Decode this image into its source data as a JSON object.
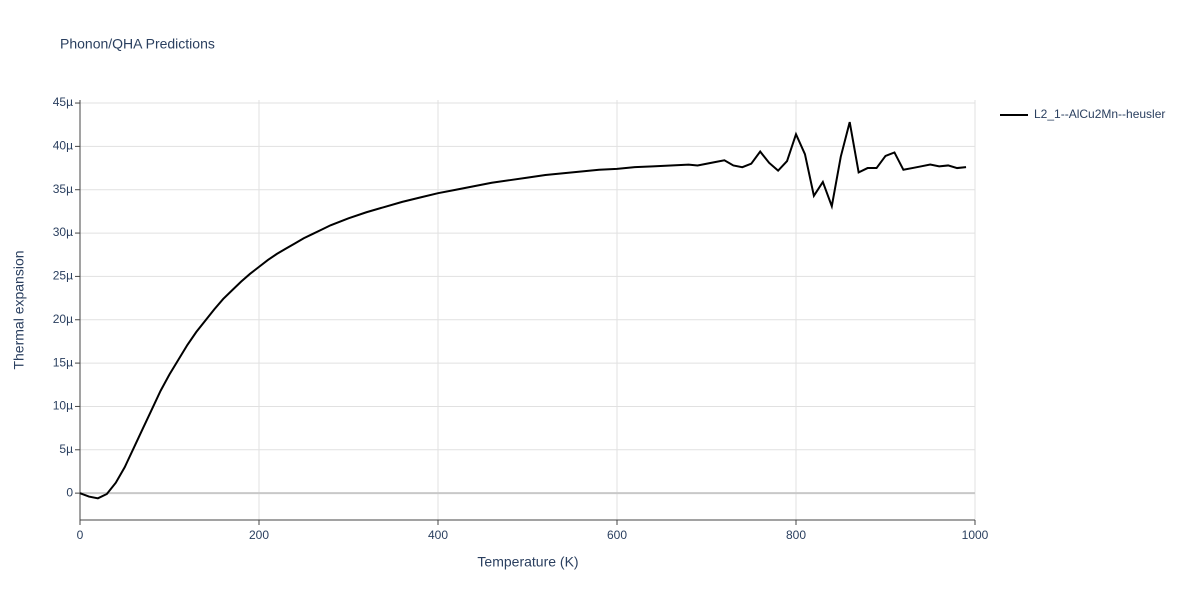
{
  "chart_data": {
    "type": "line",
    "title": "Phonon/QHA Predictions",
    "x_label": "Temperature (K)",
    "y_label": "Thermal expansion",
    "x": [
      0,
      10,
      20,
      30,
      40,
      50,
      60,
      70,
      80,
      90,
      100,
      110,
      120,
      130,
      140,
      150,
      160,
      170,
      180,
      190,
      200,
      210,
      220,
      230,
      240,
      250,
      260,
      270,
      280,
      290,
      300,
      320,
      340,
      360,
      380,
      400,
      420,
      440,
      460,
      480,
      500,
      520,
      540,
      560,
      580,
      600,
      620,
      640,
      660,
      680,
      690,
      700,
      710,
      720,
      730,
      740,
      750,
      760,
      770,
      780,
      790,
      800,
      810,
      820,
      830,
      840,
      850,
      860,
      870,
      880,
      890,
      900,
      910,
      920,
      930,
      940,
      950,
      960,
      970,
      980,
      990
    ],
    "series": [
      {
        "name": "L2_1--AlCu2Mn--heusler",
        "color": "#000000",
        "values": [
          0,
          -4e-07,
          -6e-07,
          -1e-07,
          1.2e-06,
          3e-06,
          5.2e-06,
          7.4e-06,
          9.6e-06,
          1.18e-05,
          1.37e-05,
          1.54e-05,
          1.71e-05,
          1.86e-05,
          1.99e-05,
          2.12e-05,
          2.24e-05,
          2.34e-05,
          2.44e-05,
          2.53e-05,
          2.61e-05,
          2.69e-05,
          2.76e-05,
          2.82e-05,
          2.88e-05,
          2.94e-05,
          2.99e-05,
          3.04e-05,
          3.09e-05,
          3.13e-05,
          3.17e-05,
          3.24e-05,
          3.3e-05,
          3.36e-05,
          3.41e-05,
          3.46e-05,
          3.5e-05,
          3.54e-05,
          3.58e-05,
          3.61e-05,
          3.64e-05,
          3.67e-05,
          3.69e-05,
          3.71e-05,
          3.73e-05,
          3.74e-05,
          3.76e-05,
          3.77e-05,
          3.78e-05,
          3.79e-05,
          3.78e-05,
          3.8e-05,
          3.82e-05,
          3.84e-05,
          3.78e-05,
          3.76e-05,
          3.8e-05,
          3.94e-05,
          3.81e-05,
          3.72e-05,
          3.83e-05,
          4.14e-05,
          3.91e-05,
          3.43e-05,
          3.59e-05,
          3.31e-05,
          3.88e-05,
          4.28e-05,
          3.7e-05,
          3.75e-05,
          3.75e-05,
          3.89e-05,
          3.93e-05,
          3.73e-05,
          3.75e-05,
          3.77e-05,
          3.79e-05,
          3.77e-05,
          3.78e-05,
          3.75e-05,
          3.76e-05
        ]
      }
    ],
    "xlim": [
      0,
      1000
    ],
    "xticks": [
      0,
      200,
      400,
      600,
      800,
      1000
    ],
    "ylim": [
      -3.1e-06,
      4.535e-05
    ],
    "yticks": [
      0,
      {
        "value": 5e-06,
        "label": "5µ"
      },
      {
        "value": 1e-05,
        "label": "10µ"
      },
      {
        "value": 1.5e-05,
        "label": "15µ"
      },
      {
        "value": 2e-05,
        "label": "20µ"
      },
      {
        "value": 2.5e-05,
        "label": "25µ"
      },
      {
        "value": 3e-05,
        "label": "30µ"
      },
      {
        "value": 3.5e-05,
        "label": "35µ"
      },
      {
        "value": 4e-05,
        "label": "40µ"
      },
      {
        "value": 4.5e-05,
        "label": "45µ"
      }
    ],
    "grid": true,
    "legend": "right"
  }
}
